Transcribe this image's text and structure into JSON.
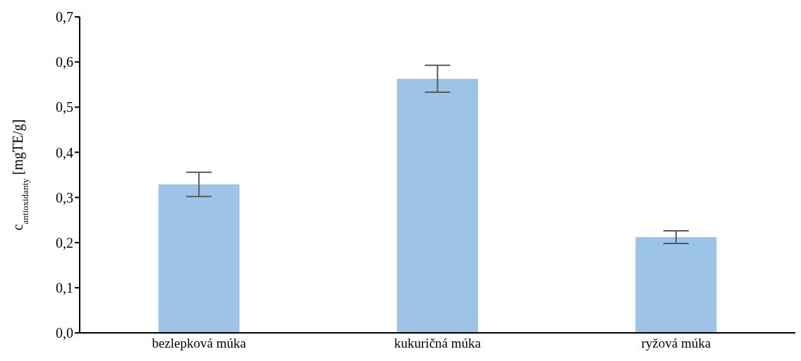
{
  "chart_data": {
    "type": "bar",
    "categories": [
      "bezlepková múka",
      "kukuričná múka",
      "ryžová múka"
    ],
    "values": [
      0.329,
      0.563,
      0.212
    ],
    "color": "#9dc3e6",
    "errors": [
      0.027,
      0.03,
      0.014
    ],
    "ylabel": "c$_{antioxidanty}$ [mgTE/g]",
    "ylim": [
      0,
      0.7
    ],
    "yticks": [
      {
        "value": 0,
        "label": "0,0"
      },
      {
        "value": 0.1,
        "label": "0,1"
      },
      {
        "value": 0.2,
        "label": "0,2"
      },
      {
        "value": 0.3,
        "label": "0,3"
      },
      {
        "value": 0.4,
        "label": "0,4"
      },
      {
        "value": 0.5,
        "label": "0,5"
      },
      {
        "value": 0.6,
        "label": "0,6"
      },
      {
        "value": 0.7,
        "label": "0,7"
      }
    ],
    "grid": false,
    "legend": false
  }
}
